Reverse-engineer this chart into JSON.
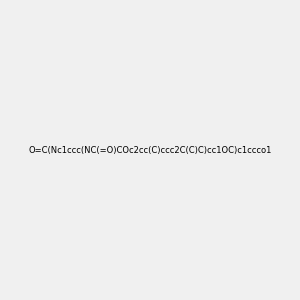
{
  "smiles": "O=C(Nc1ccc(NC(=O)COc2cc(C)ccc2C(C)C)cc1OC)c1ccco1",
  "title": "",
  "background_color": "#f0f0f0",
  "figsize": [
    3.0,
    3.0
  ],
  "dpi": 100
}
